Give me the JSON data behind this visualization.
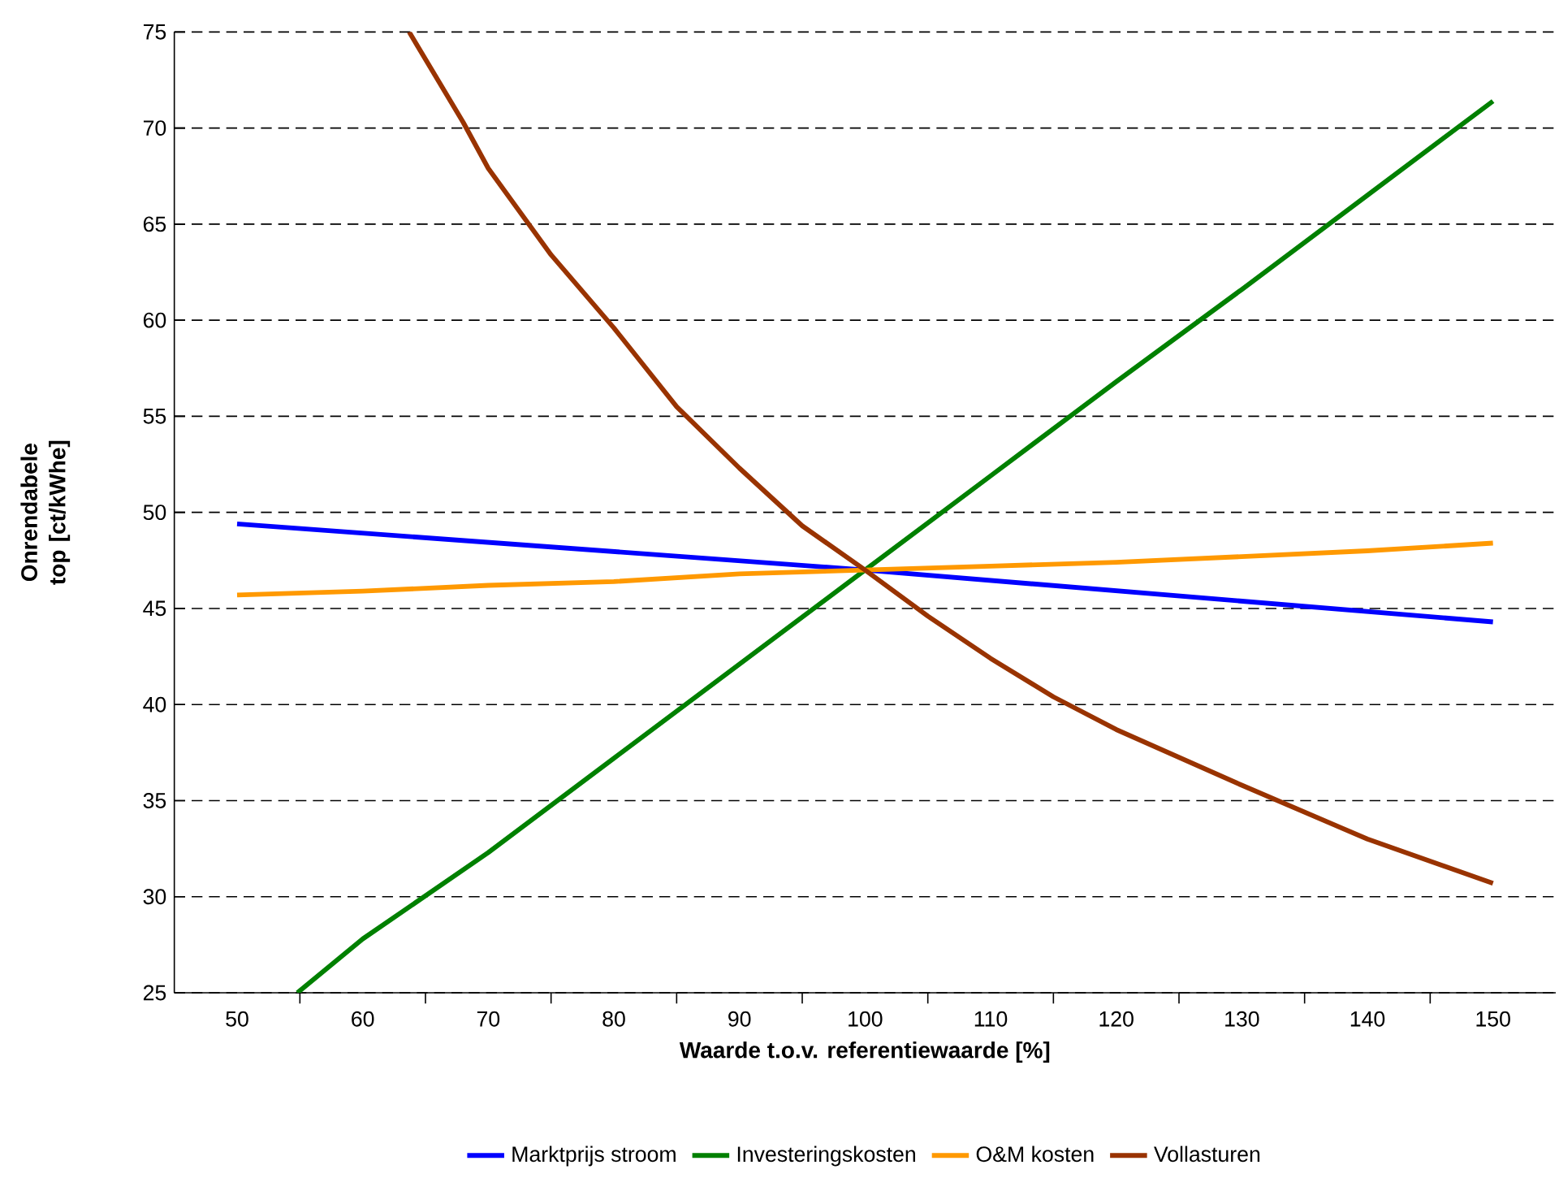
{
  "chart_data": {
    "type": "line",
    "xlabel": "Waarde t.o.v. referentiewaarde [%]",
    "ylabel": "Onrendabele top [ct/kWhe]",
    "xlim": [
      45,
      155
    ],
    "xticks": [
      50,
      60,
      70,
      80,
      90,
      100,
      110,
      120,
      130,
      140,
      150
    ],
    "ylim": [
      25,
      75
    ],
    "yticks": [
      25,
      30,
      35,
      40,
      45,
      50,
      55,
      60,
      65,
      70,
      75
    ],
    "grid": "y",
    "legend": "bottom",
    "series": [
      {
        "name": "Marktprijs stroom",
        "color": "#0000ff",
        "x": [
          50,
          100,
          150
        ],
        "values": [
          49.4,
          47.0,
          44.3
        ]
      },
      {
        "name": "Investeringskosten",
        "color": "#008000",
        "x": [
          54.8,
          60,
          70,
          80,
          90,
          100,
          110,
          120,
          130,
          140,
          150
        ],
        "values": [
          25,
          27.8,
          32.3,
          37.2,
          42.1,
          47.0,
          51.9,
          56.8,
          61.6,
          66.5,
          71.4
        ]
      },
      {
        "name": "O&M kosten",
        "color": "#ff9900",
        "x": [
          50,
          60,
          70,
          80,
          90,
          100,
          110,
          120,
          130,
          140,
          150
        ],
        "values": [
          45.7,
          45.9,
          46.2,
          46.4,
          46.8,
          47.0,
          47.2,
          47.4,
          47.7,
          48.0,
          48.4
        ]
      },
      {
        "name": "Vollasturen",
        "color": "#993300",
        "x": [
          63.7,
          68,
          70,
          75,
          80,
          85,
          90,
          95,
          100,
          105,
          110,
          115,
          120,
          130,
          140,
          150
        ],
        "values": [
          75,
          70.3,
          67.9,
          63.4,
          59.6,
          55.5,
          52.3,
          49.3,
          47.0,
          44.6,
          42.4,
          40.4,
          38.7,
          35.8,
          33.0,
          30.7
        ]
      }
    ]
  }
}
